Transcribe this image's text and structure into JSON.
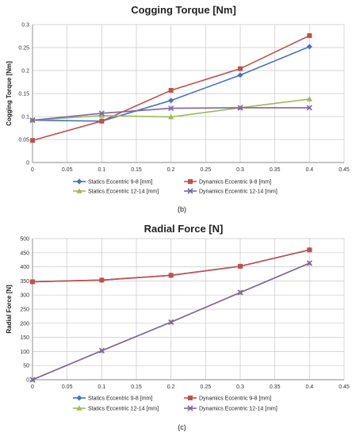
{
  "chart_data": [
    {
      "type": "line",
      "title": "Cogging Torque [Nm]",
      "xlabel": "",
      "ylabel": "Cogging Torque [Nm]",
      "xlim": [
        0,
        0.45
      ],
      "ylim": [
        0,
        0.3
      ],
      "x_ticks": [
        "0",
        "0.05",
        "0.1",
        "0.15",
        "0.2",
        "0.25",
        "0.3",
        "0.35",
        "0.4",
        "0.45"
      ],
      "y_ticks": [
        "0",
        "0.05",
        "0.1",
        "0.15",
        "0.2",
        "0.25",
        "0.3"
      ],
      "grid": true,
      "legend_position": "bottom",
      "caption": "(b)",
      "series": [
        {
          "name": "Statics Eccentric 9-8 [mm]",
          "color": "#4472C4",
          "marker": "diamond",
          "x": [
            0,
            0.1,
            0.2,
            0.3,
            0.4
          ],
          "y": [
            0.092,
            0.09,
            0.135,
            0.19,
            0.252
          ]
        },
        {
          "name": "Dynamics Eccentric 9-8 [mm]",
          "color": "#C0504D",
          "marker": "square",
          "x": [
            0,
            0.1,
            0.2,
            0.3,
            0.4
          ],
          "y": [
            0.048,
            0.09,
            0.157,
            0.204,
            0.276
          ]
        },
        {
          "name": "Statics Eccentric 12-14 [mm]",
          "color": "#9BBB59",
          "marker": "triangle",
          "x": [
            0,
            0.1,
            0.2,
            0.3,
            0.4
          ],
          "y": [
            0.092,
            0.102,
            0.099,
            0.119,
            0.138
          ]
        },
        {
          "name": "Dynamics Eccentric 12-14 [mm]",
          "color": "#8064A2",
          "marker": "x",
          "x": [
            0,
            0.1,
            0.2,
            0.3,
            0.4
          ],
          "y": [
            0.092,
            0.107,
            0.118,
            0.119,
            0.119
          ]
        }
      ]
    },
    {
      "type": "line",
      "title": "Radial Force [N]",
      "xlabel": "",
      "ylabel": "Radial Force [N]",
      "xlim": [
        0,
        0.45
      ],
      "ylim": [
        0,
        500
      ],
      "x_ticks": [
        "0",
        "0.05",
        "0.1",
        "0.15",
        "0.2",
        "0.25",
        "0.3",
        "0.35",
        "0.4",
        "0.45"
      ],
      "y_ticks": [
        "0",
        "50",
        "100",
        "150",
        "200",
        "250",
        "300",
        "350",
        "400",
        "450",
        "500"
      ],
      "grid": true,
      "legend_position": "bottom",
      "caption": "(c)",
      "series": [
        {
          "name": "Statics Eccentric 9-8 [mm]",
          "color": "#4472C4",
          "marker": "diamond",
          "x": [
            0,
            0.1,
            0.2,
            0.3,
            0.4
          ],
          "y": [
            347,
            353,
            370,
            402,
            460
          ]
        },
        {
          "name": "Dynamics Eccentric 9-8 [mm]",
          "color": "#C0504D",
          "marker": "square",
          "x": [
            0,
            0.1,
            0.2,
            0.3,
            0.4
          ],
          "y": [
            347,
            353,
            370,
            402,
            460
          ]
        },
        {
          "name": "Statics Eccentric 12-14 [mm]",
          "color": "#9BBB59",
          "marker": "triangle",
          "x": [
            0,
            0.1,
            0.2,
            0.3,
            0.4
          ],
          "y": [
            0,
            103,
            204,
            309,
            413
          ]
        },
        {
          "name": "Dynamics Eccentric 12-14 [mm]",
          "color": "#8064A2",
          "marker": "x",
          "x": [
            0,
            0.1,
            0.2,
            0.3,
            0.4
          ],
          "y": [
            0,
            103,
            204,
            309,
            413
          ]
        }
      ]
    }
  ]
}
